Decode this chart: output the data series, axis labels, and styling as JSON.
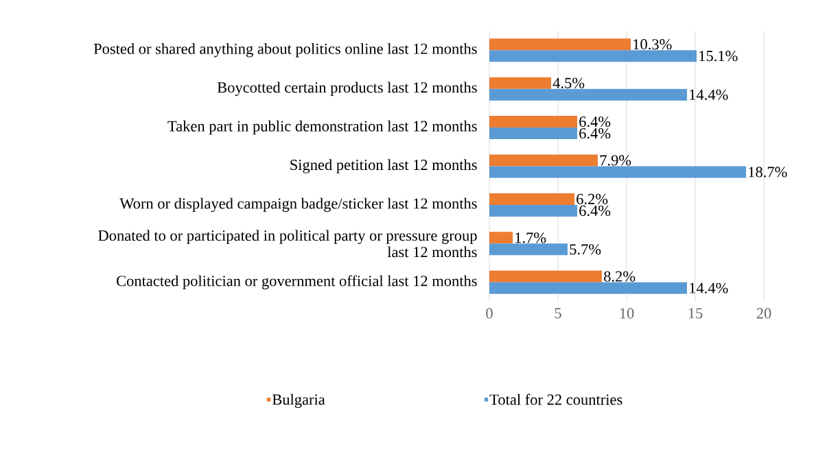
{
  "chart_data": {
    "type": "bar",
    "orientation": "horizontal",
    "categories": [
      "Posted or shared anything about politics online last 12 months",
      "Boycotted certain products last 12 months",
      "Taken part in public demonstration last 12 months",
      "Signed petition last 12 months",
      "Worn or displayed campaign badge/sticker last 12 months",
      "Donated to or participated in political party or pressure group last 12 months",
      "Contacted politician or government official last 12 months"
    ],
    "series": [
      {
        "name": "Bulgaria",
        "color": "#ed7d31",
        "values": [
          10.3,
          4.5,
          6.4,
          7.9,
          6.2,
          1.7,
          8.2
        ],
        "value_labels": [
          "10.3%",
          "4.5%",
          "6.4%",
          "7.9%",
          "6.2%",
          "1.7%",
          "8.2%"
        ]
      },
      {
        "name": "Total for 22 countries",
        "color": "#5b9bd5",
        "values": [
          15.1,
          14.4,
          6.4,
          18.7,
          6.4,
          5.7,
          14.4
        ],
        "value_labels": [
          "15.1%",
          "14.4%",
          "6.4%",
          "18.7%",
          "6.4%",
          "5.7%",
          "14.4%"
        ]
      }
    ],
    "xlim": [
      0,
      20
    ],
    "xticks": [
      0,
      5,
      10,
      15,
      20
    ],
    "grid": "x",
    "legend": "bottom"
  }
}
